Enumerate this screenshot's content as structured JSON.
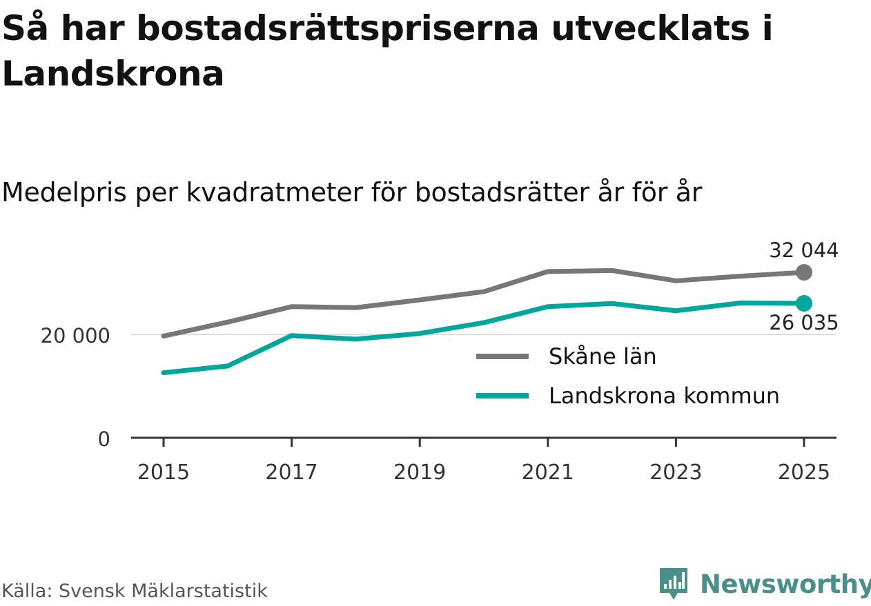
{
  "title": "Så har bostadsrättspriserna utvecklats i Landskrona",
  "subtitle": "Medelpris per kvadratmeter för bostadsrätter år för år",
  "source": "Källa: Svensk Mäklarstatistik",
  "brand": "Newsworthy",
  "colors": {
    "skane": "#77767b",
    "landskrona": "#00a59b",
    "gridline": "#dcdcdc",
    "axis": "#333333",
    "brand": "#4a8f89"
  },
  "chart_data": {
    "type": "line",
    "title": "Medelpris per kvadratmeter för bostadsrätter år för år",
    "xlabel": "",
    "ylabel": "",
    "x": [
      2015,
      2016,
      2017,
      2018,
      2019,
      2020,
      2021,
      2022,
      2023,
      2024,
      2025
    ],
    "xticks": [
      "2015",
      "2017",
      "2019",
      "2021",
      "2023",
      "2025"
    ],
    "yticks": [
      {
        "value": 0,
        "label": "0"
      },
      {
        "value": 20000,
        "label": "20 000"
      }
    ],
    "ylim": [
      0,
      32044
    ],
    "grid": true,
    "legend_position": "bottom-right",
    "series": [
      {
        "name": "Skåne län",
        "key": "skane",
        "values": [
          19700,
          22400,
          25400,
          25200,
          26700,
          28300,
          32200,
          32400,
          30400,
          31300,
          32044
        ],
        "end_label": "32 044",
        "end_label_position": "above"
      },
      {
        "name": "Landskrona kommun",
        "key": "landskrona",
        "values": [
          12600,
          13900,
          19800,
          19100,
          20200,
          22300,
          25400,
          26000,
          24600,
          26100,
          26035
        ],
        "end_label": "26 035",
        "end_label_position": "below"
      }
    ]
  }
}
